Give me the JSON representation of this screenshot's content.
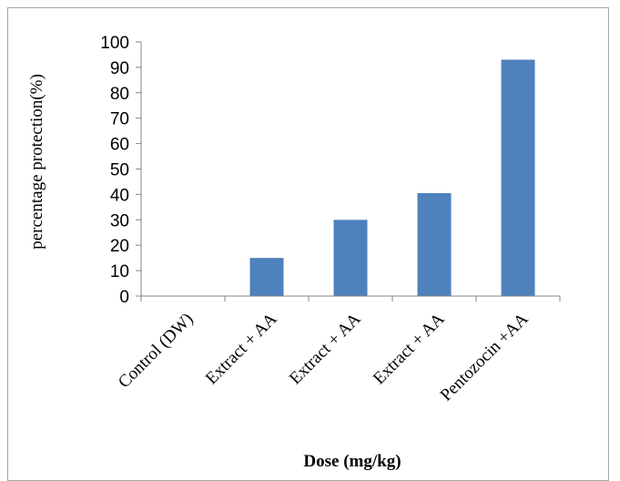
{
  "chart_data": {
    "type": "bar",
    "categories": [
      "Control (DW)",
      "Extract + AA",
      "Extract + AA",
      "Extract + AA",
      "Pentozocin +AA"
    ],
    "values": [
      0,
      15,
      30,
      40.5,
      93
    ],
    "title": "",
    "xlabel": "Dose (mg/kg)",
    "ylabel": "percentage protection(%)",
    "ylim": [
      0,
      100
    ],
    "yticks": [
      0,
      10,
      20,
      30,
      40,
      50,
      60,
      70,
      80,
      90,
      100
    ],
    "bar_color": "#4f81bd",
    "grid": false,
    "legend": "none"
  }
}
